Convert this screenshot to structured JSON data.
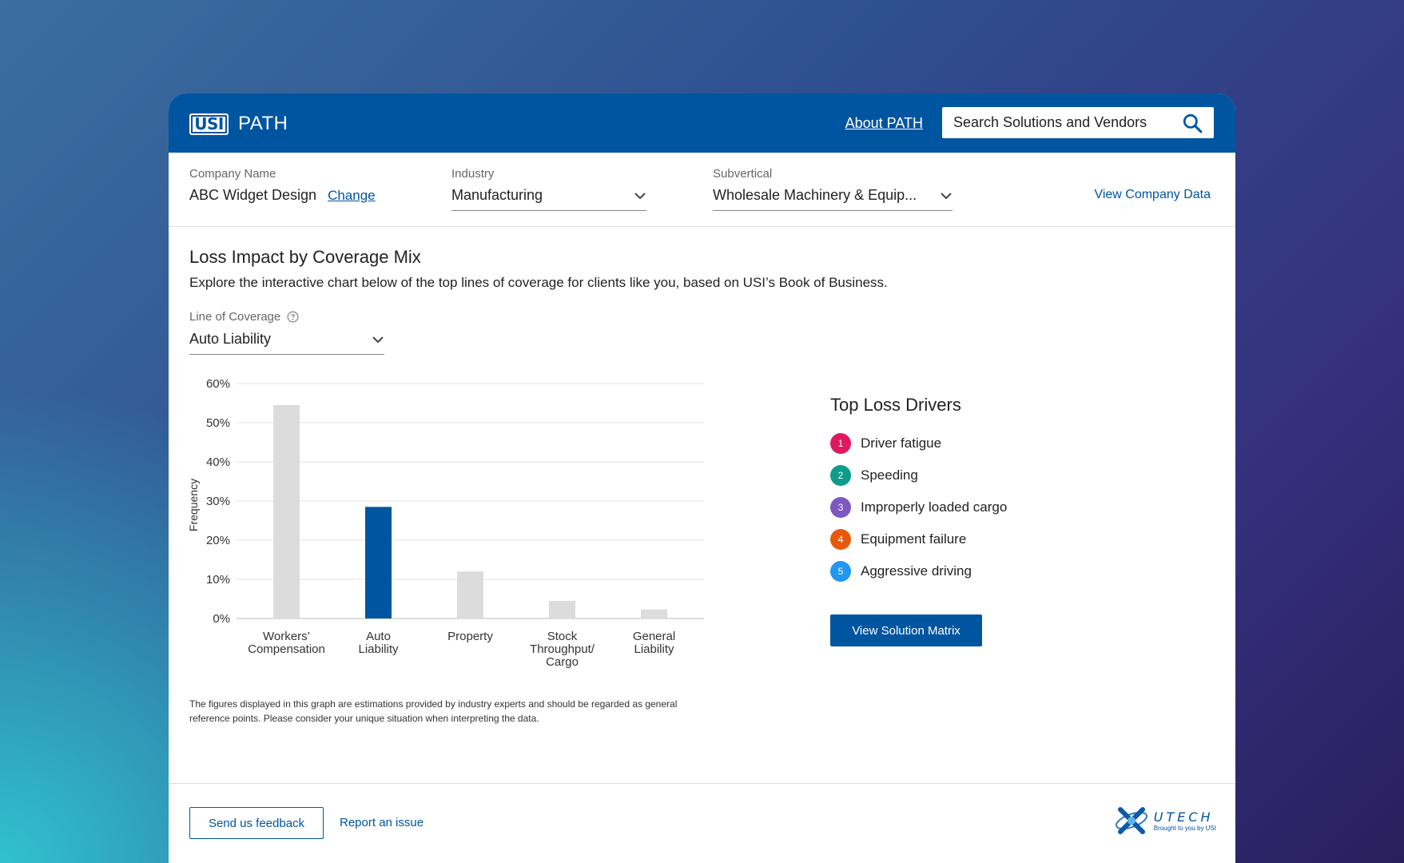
{
  "app": {
    "logo_mark": "USI",
    "logo_text": "PATH",
    "about_link": "About PATH",
    "search_placeholder": "Search Solutions and Vendors"
  },
  "filters": {
    "company_label": "Company Name",
    "company_value": "ABC Widget Design",
    "change_link": "Change",
    "industry_label": "Industry",
    "industry_value": "Manufacturing",
    "subvertical_label": "Subvertical",
    "subvertical_value": "Wholesale Machinery & Equip...",
    "view_company_link": "View Company Data"
  },
  "main": {
    "title": "Loss Impact by Coverage Mix",
    "description": "Explore the interactive chart below of the top lines of coverage for clients like you, based on USI’s Book of Business.",
    "line_of_coverage_label": "Line of Coverage",
    "line_of_coverage_value": "Auto Liability",
    "disclaimer": "The figures displayed in this graph are estimations provided by industry experts and should be regarded as general reference points. Please consider your unique situation when interpreting the data."
  },
  "chart_data": {
    "type": "bar",
    "categories": [
      [
        "Workers’",
        "Compensation"
      ],
      [
        "Auto",
        "Liability"
      ],
      [
        "Property"
      ],
      [
        "Stock",
        "Throughput/",
        "Cargo"
      ],
      [
        "General",
        "Liability"
      ]
    ],
    "values": [
      54.5,
      28.5,
      12,
      4.5,
      2.3
    ],
    "highlighted_index": 1,
    "ylabel": "Frequency",
    "ylim": [
      0,
      60
    ],
    "yticks": [
      "0%",
      "10%",
      "20%",
      "30%",
      "40%",
      "50%",
      "60%"
    ],
    "grid": true,
    "colors": {
      "default": "#dcdcdc",
      "highlight": "#0055a0",
      "grid": "#e3e3e3"
    }
  },
  "drivers": {
    "title": "Top Loss Drivers",
    "items": [
      {
        "num": "1",
        "label": "Driver fatigue",
        "color": "#e0195e"
      },
      {
        "num": "2",
        "label": "Speeding",
        "color": "#0d9b8a"
      },
      {
        "num": "3",
        "label": "Improperly loaded cargo",
        "color": "#7e57c2"
      },
      {
        "num": "4",
        "label": "Equipment failure",
        "color": "#e8590c"
      },
      {
        "num": "5",
        "label": "Aggressive driving",
        "color": "#2196f3"
      }
    ],
    "button": "View Solution Matrix"
  },
  "footer": {
    "feedback_button": "Send us feedback",
    "report_link": "Report an issue",
    "brand_name": "UTECH",
    "brand_tagline": "Brought to you by USI"
  },
  "colors": {
    "primary": "#0055a0"
  }
}
